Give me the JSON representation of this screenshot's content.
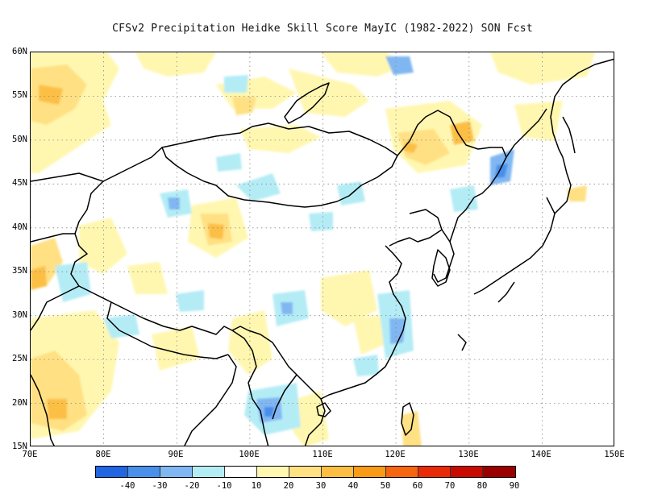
{
  "title": "CFSv2  Precipitation Heidke Skill Score MayIC (1982-2022) SON Fcst",
  "lat_labels": [
    "60N",
    "55N",
    "50N",
    "45N",
    "40N",
    "35N",
    "30N",
    "25N",
    "20N",
    "15N"
  ],
  "lon_labels": [
    "70E",
    "80E",
    "90E",
    "100E",
    "110E",
    "120E",
    "130E",
    "140E",
    "150E"
  ],
  "colorbar": {
    "colors": [
      "#1f66e0",
      "#4a8fea",
      "#80b7f2",
      "#b4ecf6",
      "#ffffff",
      "#fff7b0",
      "#ffe083",
      "#fcbf44",
      "#f99b16",
      "#f5660f",
      "#e92a08",
      "#c80a00",
      "#9a0000"
    ],
    "labels": [
      "-40",
      "-30",
      "-20",
      "-10",
      "10",
      "20",
      "30",
      "40",
      "50",
      "60",
      "70",
      "80",
      "90"
    ]
  },
  "extent": {
    "lon_min": 70,
    "lon_max": 150,
    "lat_min": 15,
    "lat_max": 60
  }
}
